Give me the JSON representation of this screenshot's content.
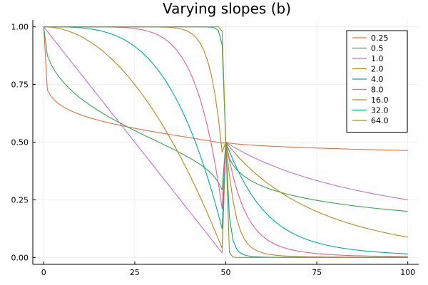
{
  "chart_data": {
    "type": "line",
    "title": "Varying slopes (b)",
    "xlabel": "",
    "ylabel": "",
    "xlim": [
      -3,
      103
    ],
    "ylim": [
      -0.03,
      1.03
    ],
    "x_ticks": [
      0,
      25,
      50,
      75,
      100
    ],
    "x_tick_labels": [
      "0",
      "25",
      "50",
      "75",
      "100"
    ],
    "y_ticks": [
      0,
      0.25,
      0.5,
      0.75,
      1.0
    ],
    "y_tick_labels": [
      "0.00",
      "0.25",
      "0.50",
      "0.75",
      "1.00"
    ],
    "grid": true,
    "legend_position": "top-right",
    "x": [
      0,
      1,
      2,
      3,
      4,
      5,
      6,
      7,
      8,
      9,
      10,
      11,
      12,
      13,
      14,
      15,
      16,
      17,
      18,
      19,
      20,
      21,
      22,
      23,
      24,
      25,
      26,
      27,
      28,
      29,
      30,
      31,
      32,
      33,
      34,
      35,
      36,
      37,
      38,
      39,
      40,
      41,
      42,
      43,
      44,
      45,
      46,
      47,
      48,
      49,
      50,
      51,
      52,
      53,
      54,
      55,
      56,
      57,
      58,
      59,
      60,
      61,
      62,
      63,
      64,
      65,
      66,
      67,
      68,
      69,
      70,
      71,
      72,
      73,
      74,
      75,
      76,
      77,
      78,
      79,
      80,
      81,
      82,
      83,
      84,
      85,
      86,
      87,
      88,
      89,
      90,
      91,
      92,
      93,
      94,
      95,
      96,
      97,
      98,
      99,
      100
    ],
    "series": [
      {
        "name": "0.25",
        "color": "#e26f46",
        "values": [
          1.0,
          0.7264,
          0.6989,
          0.6811,
          0.6677,
          0.6567,
          0.6474,
          0.6393,
          0.6321,
          0.6256,
          0.6196,
          0.6141,
          0.609,
          0.6041,
          0.5996,
          0.5953,
          0.5911,
          0.5872,
          0.5834,
          0.5798,
          0.5762,
          0.5728,
          0.5695,
          0.5663,
          0.5632,
          0.5601,
          0.5571,
          0.5542,
          0.5513,
          0.5485,
          0.5457,
          0.543,
          0.5403,
          0.5376,
          0.535,
          0.5324,
          0.5298,
          0.5272,
          0.5247,
          0.5221,
          0.5196,
          0.517,
          0.5145,
          0.512,
          0.5094,
          0.5068,
          0.5042,
          0.5016,
          0.4988,
          0.4958,
          0.5,
          0.4958,
          0.4938,
          0.4921,
          0.4907,
          0.4895,
          0.4883,
          0.4873,
          0.4863,
          0.4854,
          0.4845,
          0.4836,
          0.4828,
          0.4821,
          0.4813,
          0.4806,
          0.4799,
          0.4792,
          0.4786,
          0.4779,
          0.4773,
          0.4767,
          0.4761,
          0.4755,
          0.475,
          0.4744,
          0.4739,
          0.4734,
          0.4729,
          0.4724,
          0.4719,
          0.4714,
          0.4709,
          0.4704,
          0.4699,
          0.4695,
          0.469,
          0.4686,
          0.4682,
          0.4677,
          0.4673,
          0.4669,
          0.4665,
          0.4661,
          0.4657,
          0.4653,
          0.4649,
          0.4645,
          0.4641,
          0.4638,
          0.4634
        ]
      },
      {
        "name": "0.5",
        "color": "#3ba64d",
        "values": [
          1.0,
          0.875,
          0.8383,
          0.8105,
          0.7874,
          0.7674,
          0.7496,
          0.7334,
          0.7186,
          0.7048,
          0.6919,
          0.6798,
          0.6683,
          0.6573,
          0.6468,
          0.6367,
          0.627,
          0.6176,
          0.6085,
          0.5996,
          0.591,
          0.5826,
          0.5743,
          0.5662,
          0.5582,
          0.5503,
          0.5425,
          0.5348,
          0.5272,
          0.5196,
          0.512,
          0.5044,
          0.4968,
          0.4892,
          0.4815,
          0.4737,
          0.4658,
          0.4577,
          0.4494,
          0.4409,
          0.4321,
          0.4229,
          0.4131,
          0.4027,
          0.3914,
          0.3789,
          0.3645,
          0.3473,
          0.3252,
          0.2929,
          0.5,
          0.4288,
          0.4005,
          0.3808,
          0.3653,
          0.3525,
          0.3416,
          0.3321,
          0.3237,
          0.3162,
          0.3094,
          0.3032,
          0.2974,
          0.2921,
          0.2871,
          0.2825,
          0.2781,
          0.274,
          0.2701,
          0.2664,
          0.2629,
          0.2596,
          0.2564,
          0.2533,
          0.2504,
          0.2476,
          0.2449,
          0.2423,
          0.2398,
          0.2374,
          0.235,
          0.2328,
          0.2306,
          0.2284,
          0.2264,
          0.2244,
          0.2224,
          0.2205,
          0.2187,
          0.2169,
          0.2151,
          0.2134,
          0.2118,
          0.2102,
          0.2086,
          0.207,
          0.2055,
          0.204,
          0.2026,
          0.2012,
          0.1998
        ]
      },
      {
        "name": "1.0",
        "color": "#c271d2",
        "values": [
          1.0,
          0.98,
          0.96,
          0.94,
          0.92,
          0.9,
          0.88,
          0.86,
          0.84,
          0.82,
          0.8,
          0.78,
          0.76,
          0.74,
          0.72,
          0.7,
          0.68,
          0.66,
          0.64,
          0.62,
          0.6,
          0.58,
          0.56,
          0.54,
          0.52,
          0.5,
          0.48,
          0.46,
          0.44,
          0.42,
          0.4,
          0.38,
          0.36,
          0.34,
          0.32,
          0.3,
          0.28,
          0.26,
          0.24,
          0.22,
          0.2,
          0.18,
          0.16,
          0.14,
          0.12,
          0.1,
          0.08,
          0.06,
          0.04,
          0.02,
          0.5,
          0.4902,
          0.4808,
          0.4717,
          0.463,
          0.4545,
          0.4464,
          0.4386,
          0.431,
          0.4237,
          0.4167,
          0.4098,
          0.4032,
          0.3968,
          0.3906,
          0.3846,
          0.3788,
          0.3731,
          0.3676,
          0.3623,
          0.3571,
          0.3521,
          0.3472,
          0.3425,
          0.3378,
          0.3333,
          0.3289,
          0.3247,
          0.3205,
          0.3165,
          0.3125,
          0.3086,
          0.3049,
          0.3012,
          0.2976,
          0.2941,
          0.2907,
          0.2874,
          0.2841,
          0.2809,
          0.2778,
          0.2747,
          0.2717,
          0.2688,
          0.2659,
          0.2632,
          0.2604,
          0.2577,
          0.2551,
          0.2525,
          0.25
        ]
      },
      {
        "name": "2.0",
        "color": "#ac8d18",
        "values": [
          1.0,
          0.9996,
          0.9984,
          0.9964,
          0.9936,
          0.99,
          0.9856,
          0.9804,
          0.9744,
          0.9676,
          0.96,
          0.9516,
          0.9424,
          0.9324,
          0.9216,
          0.91,
          0.8976,
          0.8844,
          0.8704,
          0.8556,
          0.84,
          0.8236,
          0.8064,
          0.7884,
          0.7696,
          0.75,
          0.7296,
          0.7084,
          0.6864,
          0.6636,
          0.64,
          0.6156,
          0.5904,
          0.5644,
          0.5376,
          0.51,
          0.4816,
          0.4524,
          0.4224,
          0.3916,
          0.36,
          0.3276,
          0.2944,
          0.2604,
          0.2256,
          0.19,
          0.1536,
          0.1164,
          0.0784,
          0.0396,
          0.5,
          0.4804,
          0.4616,
          0.4438,
          0.4268,
          0.4106,
          0.3951,
          0.3803,
          0.3662,
          0.3526,
          0.3397,
          0.3273,
          0.3155,
          0.3042,
          0.2933,
          0.2829,
          0.2729,
          0.2633,
          0.2541,
          0.2452,
          0.2367,
          0.2286,
          0.2207,
          0.2132,
          0.206,
          0.199,
          0.1923,
          0.1859,
          0.1797,
          0.1737,
          0.168,
          0.1625,
          0.1571,
          0.152,
          0.1471,
          0.1423,
          0.1377,
          0.1333,
          0.129,
          0.1249,
          0.1209,
          0.1171,
          0.1134,
          0.1098,
          0.1063,
          0.103,
          0.0998,
          0.0966,
          0.0936,
          0.0907,
          0.0879
        ]
      },
      {
        "name": "4.0",
        "color": "#00a9ad",
        "values": [
          1.0,
          1.0,
          1.0,
          0.9999,
          0.9998,
          0.9996,
          0.9993,
          0.9988,
          0.9981,
          0.9972,
          0.996,
          0.9946,
          0.9928,
          0.9906,
          0.988,
          0.9849,
          0.9813,
          0.9771,
          0.9722,
          0.9667,
          0.9604,
          0.9532,
          0.9452,
          0.9362,
          0.9262,
          0.915,
          0.9027,
          0.8892,
          0.8743,
          0.8581,
          0.8404,
          0.8211,
          0.8002,
          0.7777,
          0.7532,
          0.727,
          0.6989,
          0.6688,
          0.6366,
          0.6023,
          0.5658,
          0.527,
          0.4858,
          0.4421,
          0.3959,
          0.3471,
          0.2956,
          0.2414,
          0.1843,
          0.1243,
          0.5,
          0.4602,
          0.4228,
          0.388,
          0.3557,
          0.3259,
          0.2985,
          0.2733,
          0.2503,
          0.2293,
          0.2102,
          0.1928,
          0.177,
          0.1626,
          0.1495,
          0.1376,
          0.1268,
          0.1169,
          0.108,
          0.0998,
          0.0924,
          0.0856,
          0.0795,
          0.0739,
          0.0687,
          0.064,
          0.0597,
          0.0558,
          0.0522,
          0.0489,
          0.0458,
          0.043,
          0.0404,
          0.038,
          0.0358,
          0.0337,
          0.0318,
          0.0301,
          0.0284,
          0.0269,
          0.0255,
          0.0242,
          0.0229,
          0.0218,
          0.0207,
          0.0197,
          0.0187,
          0.0179,
          0.017,
          0.0162,
          0.0155
        ]
      },
      {
        "name": "8.0",
        "color": "#ed5d92",
        "values": [
          1.0,
          1.0,
          1.0,
          1.0,
          1.0,
          1.0,
          1.0,
          1.0,
          1.0,
          1.0,
          1.0,
          1.0,
          1.0,
          0.9999,
          0.9999,
          0.9998,
          0.9997,
          0.9995,
          0.9992,
          0.9989,
          0.9984,
          0.9978,
          0.997,
          0.9959,
          0.9945,
          0.9928,
          0.9905,
          0.9877,
          0.9841,
          0.9797,
          0.9744,
          0.9678,
          0.9599,
          0.9503,
          0.9388,
          0.9251,
          0.9088,
          0.8895,
          0.8669,
          0.8405,
          0.8096,
          0.7738,
          0.7324,
          0.6845,
          0.6294,
          0.5662,
          0.4939,
          0.4114,
          0.3177,
          0.2117,
          0.5,
          0.4207,
          0.3528,
          0.2957,
          0.2481,
          0.2087,
          0.1762,
          0.1493,
          0.1272,
          0.1089,
          0.0936,
          0.081,
          0.0704,
          0.0615,
          0.054,
          0.0476,
          0.0422,
          0.0375,
          0.0335,
          0.0301,
          0.0271,
          0.0245,
          0.0222,
          0.0202,
          0.0184,
          0.0168,
          0.0154,
          0.0142,
          0.0131,
          0.0121,
          0.0112,
          0.0104,
          0.0097,
          0.009,
          0.0084,
          0.0079,
          0.0074,
          0.0069,
          0.0065,
          0.0061,
          0.0057,
          0.0054,
          0.0051,
          0.0048,
          0.0045,
          0.0043,
          0.0041,
          0.0039,
          0.0037,
          0.0035,
          0.0033
        ]
      },
      {
        "name": "16.0",
        "color": "#c68225",
        "values": [
          1.0,
          1.0,
          1.0,
          1.0,
          1.0,
          1.0,
          1.0,
          1.0,
          1.0,
          1.0,
          1.0,
          1.0,
          1.0,
          1.0,
          1.0,
          1.0,
          1.0,
          1.0,
          1.0,
          1.0,
          1.0,
          1.0,
          1.0,
          1.0,
          1.0,
          1.0,
          1.0,
          1.0,
          0.9999,
          0.9999,
          0.9998,
          0.9996,
          0.9994,
          0.999,
          0.9983,
          0.9973,
          0.9957,
          0.9934,
          0.9899,
          0.9848,
          0.9771,
          0.9663,
          0.9506,
          0.9283,
          0.8971,
          0.8532,
          0.7926,
          0.7104,
          0.6004,
          0.4559,
          0.5,
          0.3553,
          0.2458,
          0.1686,
          0.1168,
          0.0825,
          0.0596,
          0.0441,
          0.0334,
          0.0258,
          0.0203,
          0.0163,
          0.0133,
          0.011,
          0.0092,
          0.0078,
          0.0066,
          0.0057,
          0.005,
          0.0044,
          0.0039,
          0.0034,
          0.0031,
          0.0028,
          0.0025,
          0.0023,
          0.0021,
          0.0019,
          0.0017,
          0.0016,
          0.0015,
          0.0014,
          0.0013,
          0.0012,
          0.0011,
          0.001,
          0.001,
          0.0009,
          0.0008,
          0.0008,
          0.0007,
          0.0007,
          0.0007,
          0.0006,
          0.0006,
          0.0006,
          0.0005,
          0.0005,
          0.0005,
          0.0005,
          0.0004
        ]
      },
      {
        "name": "32.0",
        "color": "#00a98d",
        "values": [
          1.0,
          1.0,
          1.0,
          1.0,
          1.0,
          1.0,
          1.0,
          1.0,
          1.0,
          1.0,
          1.0,
          1.0,
          1.0,
          1.0,
          1.0,
          1.0,
          1.0,
          1.0,
          1.0,
          1.0,
          1.0,
          1.0,
          1.0,
          1.0,
          1.0,
          1.0,
          1.0,
          1.0,
          1.0,
          1.0,
          1.0,
          1.0,
          1.0,
          1.0,
          1.0,
          1.0,
          1.0,
          1.0,
          1.0,
          1.0,
          1.0,
          1.0,
          1.0,
          0.9999,
          0.9998,
          0.9994,
          0.9983,
          0.9949,
          0.983,
          0.9224,
          0.5,
          0.1744,
          0.0738,
          0.0358,
          0.0194,
          0.0114,
          0.0071,
          0.0047,
          0.0032,
          0.0022,
          0.0016,
          0.0012,
          0.0009,
          0.0007,
          0.0005,
          0.0004,
          0.0003,
          0.0003,
          0.0002,
          0.0002,
          0.0002,
          0.0001,
          0.0001,
          0.0001,
          0.0001,
          0.0001,
          0.0001,
          0.0001,
          0.0001,
          0.0001,
          0.0,
          0.0,
          0.0,
          0.0,
          0.0,
          0.0,
          0.0,
          0.0,
          0.0,
          0.0,
          0.0,
          0.0,
          0.0,
          0.0,
          0.0,
          0.0,
          0.0,
          0.0,
          0.0,
          0.0,
          0.0
        ]
      },
      {
        "name": "64.0",
        "color": "#8e971e",
        "values": [
          1.0,
          1.0,
          1.0,
          1.0,
          1.0,
          1.0,
          1.0,
          1.0,
          1.0,
          1.0,
          1.0,
          1.0,
          1.0,
          1.0,
          1.0,
          1.0,
          1.0,
          1.0,
          1.0,
          1.0,
          1.0,
          1.0,
          1.0,
          1.0,
          1.0,
          1.0,
          1.0,
          1.0,
          1.0,
          1.0,
          1.0,
          1.0,
          1.0,
          1.0,
          1.0,
          1.0,
          1.0,
          1.0,
          1.0,
          1.0,
          1.0,
          1.0,
          1.0,
          1.0,
          1.0,
          1.0,
          1.0,
          1.0,
          0.9999,
          0.9806,
          0.5,
          0.0217,
          0.0013,
          0.0002,
          0.0,
          0.0,
          0.0,
          0.0,
          0.0,
          0.0,
          0.0,
          0.0,
          0.0,
          0.0,
          0.0,
          0.0,
          0.0,
          0.0,
          0.0,
          0.0,
          0.0,
          0.0,
          0.0,
          0.0,
          0.0,
          0.0,
          0.0,
          0.0,
          0.0,
          0.0,
          0.0,
          0.0,
          0.0,
          0.0,
          0.0,
          0.0,
          0.0,
          0.0,
          0.0,
          0.0,
          0.0,
          0.0,
          0.0,
          0.0,
          0.0,
          0.0,
          0.0,
          0.0,
          0.0,
          0.0,
          0.0
        ]
      }
    ]
  }
}
